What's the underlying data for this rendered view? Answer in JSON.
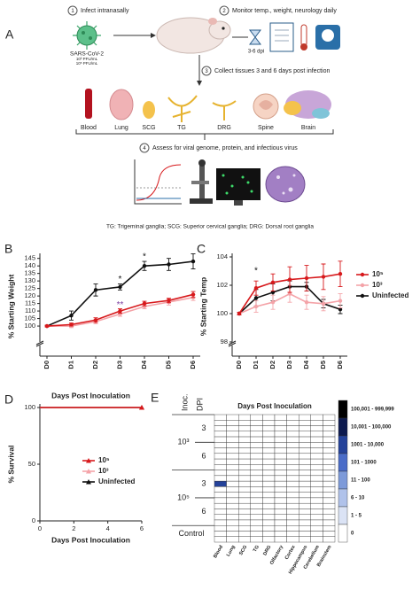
{
  "panel_a": {
    "label": "A",
    "steps": [
      {
        "number": "1",
        "text": "Infect intranasally"
      },
      {
        "number": "2",
        "text": "Monitor temp., weight, neurology daily"
      },
      {
        "number": "3",
        "text": "Collect tissues 3 and 6 days post infection"
      },
      {
        "number": "4",
        "text": "Assess for viral genome, protein, and infectious virus"
      }
    ],
    "virus": "SARS-CoV-2",
    "doses": [
      "10³ PFU/mL",
      "10⁵ PFU/mL"
    ],
    "timer": "3-6 dpi",
    "tissues": [
      "Blood",
      "Lung",
      "SCG",
      "TG",
      "DRG",
      "Spine",
      "Brain"
    ],
    "caption": "TG: Trigeminal ganglia; SCG: Superior cervical ganglia; DRG: Dorsal root ganglia"
  },
  "chart_data": [
    {
      "type": "line",
      "panel": "B",
      "y_label": "% Starting Weight",
      "marker": "circle",
      "categories": [
        "D0",
        "D1",
        "D2",
        "D3",
        "D4",
        "D5",
        "D6"
      ],
      "ylim": [
        80,
        146
      ],
      "yticks": [
        100,
        105,
        110,
        115,
        120,
        125,
        130,
        135,
        140,
        145
      ],
      "axis_break": true,
      "series": [
        {
          "color": "#d7191c",
          "values": [
            100,
            101,
            104,
            110,
            115,
            117,
            121
          ],
          "errors": [
            0.5,
            1,
            1.5,
            1.5,
            1.5,
            1.5,
            2
          ]
        },
        {
          "color": "#f4a3a8",
          "values": [
            100,
            100,
            103,
            108,
            113,
            116,
            119
          ],
          "errors": [
            0.5,
            1,
            1.5,
            1.5,
            1.5,
            2,
            2
          ]
        },
        {
          "color": "#111111",
          "values": [
            100,
            107,
            124,
            126,
            140,
            141,
            143
          ],
          "errors": [
            0.5,
            3,
            4,
            2,
            3,
            4,
            5
          ]
        }
      ],
      "annotations": [
        {
          "text": "*",
          "category": "D3",
          "y": 131,
          "color": "#111111"
        },
        {
          "text": "*",
          "category": "D4",
          "y": 146,
          "color": "#111111"
        },
        {
          "text": "**",
          "category": "D3",
          "y": 114,
          "color": "#7b3fa0"
        }
      ]
    },
    {
      "type": "line",
      "panel": "C",
      "y_label": "% Starting Temp",
      "marker": "circle",
      "legend": "right",
      "categories": [
        "D0",
        "D1",
        "D2",
        "D3",
        "D4",
        "D5",
        "D6"
      ],
      "ylim": [
        97,
        104
      ],
      "yticks": [
        98,
        100,
        102,
        104
      ],
      "axis_break": true,
      "series": [
        {
          "name": "10⁵",
          "color": "#d7191c",
          "values": [
            100,
            101.8,
            102.2,
            102.4,
            102.5,
            102.6,
            102.8
          ],
          "errors": [
            0.1,
            0.5,
            0.6,
            0.9,
            0.9,
            0.9,
            0.9
          ]
        },
        {
          "name": "10³",
          "color": "#f4a3a8",
          "values": [
            100,
            100.5,
            100.8,
            101.4,
            100.8,
            100.7,
            100.9
          ],
          "errors": [
            0.1,
            0.4,
            0.5,
            0.6,
            0.5,
            0.5,
            0.5
          ]
        },
        {
          "name": "Uninfected",
          "color": "#111111",
          "values": [
            100,
            101.1,
            101.5,
            101.9,
            101.9,
            100.7,
            100.3
          ],
          "errors": [
            0.1,
            0.6,
            0.6,
            0.4,
            0.3,
            0.3,
            0.3
          ]
        }
      ],
      "annotations": [
        {
          "text": "*",
          "category": "D1",
          "y": 103,
          "color": "#111111"
        }
      ]
    },
    {
      "type": "line",
      "panel": "D",
      "title": "Days Post Inoculation",
      "x_label": "Days Post Inoculation",
      "y_label": "% Survival",
      "marker": "triangle",
      "legend": "center",
      "x": [
        0,
        6
      ],
      "xlim": [
        0,
        6
      ],
      "xticks": [
        0,
        2,
        4,
        6
      ],
      "ylim": [
        0,
        100
      ],
      "yticks": [
        0,
        50,
        100
      ],
      "series": [
        {
          "name": "10⁵",
          "color": "#d7191c",
          "values": [
            100,
            100
          ]
        },
        {
          "name": "10³",
          "color": "#f4a3a8",
          "values": [
            100,
            100
          ]
        },
        {
          "name": "Uninfected",
          "color": "#111111",
          "values": [
            100,
            100
          ]
        }
      ]
    },
    {
      "type": "heatmap",
      "panel": "E",
      "title": "Days Post Inoculation",
      "inoc_header": "Inoc.",
      "dpi_header": "DPI",
      "columns": [
        "Blood",
        "Lung",
        "SCG",
        "TG",
        "DRG",
        "Olfactory",
        "Cortex",
        "Hippocampus",
        "Cerebellum",
        "Brainstem"
      ],
      "legend": [
        {
          "label": "100,001 - 999,999",
          "min": 100001,
          "color": "#000000"
        },
        {
          "label": "10,001 - 100,000",
          "min": 10001,
          "color": "#0d1a4f"
        },
        {
          "label": "1001 - 10,000",
          "min": 1001,
          "color": "#24429a"
        },
        {
          "label": "101 - 1000",
          "min": 101,
          "color": "#4a6cc8"
        },
        {
          "label": "11 - 100",
          "min": 11,
          "color": "#7d9ad9"
        },
        {
          "label": "6 - 10",
          "min": 6,
          "color": "#b0c2ea"
        },
        {
          "label": "1 - 5",
          "min": 1,
          "color": "#dbe3f5"
        },
        {
          "label": "0",
          "min": 0,
          "color": "#ffffff"
        }
      ],
      "inocula": [
        {
          "label": "10³",
          "dpi": [
            {
              "label": "3",
              "values": [
                [
                  0,
                  0,
                  0,
                  0,
                  0,
                  0,
                  0,
                  0,
                  0,
                  0
                ],
                [
                  0,
                  0,
                  0,
                  0,
                  0,
                  0,
                  0,
                  0,
                  0,
                  0
                ],
                [
                  0,
                  0,
                  0,
                  0,
                  0,
                  0,
                  0,
                  0,
                  0,
                  0
                ],
                [
                  0,
                  0,
                  0,
                  0,
                  0,
                  0,
                  0,
                  0,
                  0,
                  0
                ],
                [
                  0,
                  0,
                  0,
                  0,
                  0,
                  0,
                  0,
                  0,
                  0,
                  0
                ]
              ]
            },
            {
              "label": "6",
              "values": [
                [
                  0,
                  0,
                  0,
                  0,
                  0,
                  0,
                  0,
                  0,
                  0,
                  0
                ],
                [
                  0,
                  0,
                  0,
                  0,
                  0,
                  0,
                  0,
                  0,
                  0,
                  0
                ],
                [
                  0,
                  0,
                  0,
                  0,
                  0,
                  0,
                  0,
                  0,
                  0,
                  0
                ],
                [
                  0,
                  0,
                  0,
                  0,
                  0,
                  0,
                  0,
                  0,
                  0,
                  0
                ],
                [
                  0,
                  0,
                  0,
                  0,
                  0,
                  0,
                  0,
                  0,
                  0,
                  0
                ]
              ]
            }
          ]
        },
        {
          "label": "10⁵",
          "dpi": [
            {
              "label": "3",
              "values": [
                [
                  0,
                  0,
                  0,
                  0,
                  0,
                  0,
                  0,
                  0,
                  0,
                  0
                ],
                [
                  0,
                  0,
                  0,
                  0,
                  0,
                  0,
                  0,
                  0,
                  0,
                  0
                ],
                [
                  5000,
                  0,
                  0,
                  0,
                  0,
                  0,
                  0,
                  0,
                  0,
                  0
                ],
                [
                  0,
                  0,
                  0,
                  0,
                  0,
                  0,
                  0,
                  0,
                  0,
                  0
                ],
                [
                  0,
                  0,
                  0,
                  0,
                  0,
                  0,
                  0,
                  0,
                  0,
                  0
                ]
              ]
            },
            {
              "label": "6",
              "values": [
                [
                  0,
                  0,
                  0,
                  0,
                  0,
                  0,
                  0,
                  0,
                  0,
                  0
                ],
                [
                  0,
                  0,
                  0,
                  0,
                  0,
                  0,
                  0,
                  0,
                  0,
                  0
                ],
                [
                  0,
                  0,
                  0,
                  0,
                  0,
                  0,
                  0,
                  0,
                  0,
                  0
                ],
                [
                  0,
                  0,
                  0,
                  0,
                  0,
                  0,
                  0,
                  0,
                  0,
                  0
                ],
                [
                  0,
                  0,
                  0,
                  0,
                  0,
                  0,
                  0,
                  0,
                  0,
                  0
                ]
              ]
            }
          ]
        },
        {
          "label": "Control",
          "dpi": [
            {
              "values": [
                [
                  0,
                  0,
                  0,
                  0,
                  0,
                  0,
                  0,
                  0,
                  0,
                  0
                ],
                [
                  0,
                  0,
                  0,
                  0,
                  0,
                  0,
                  0,
                  0,
                  0,
                  0
                ],
                [
                  0,
                  0,
                  0,
                  0,
                  0,
                  0,
                  0,
                  0,
                  0,
                  0
                ]
              ]
            }
          ]
        }
      ]
    }
  ]
}
